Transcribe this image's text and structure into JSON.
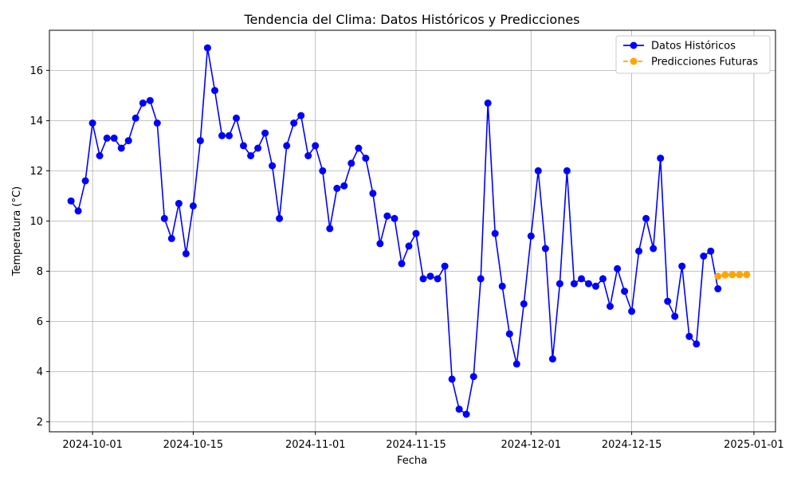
{
  "chart_data": {
    "type": "line",
    "title": "Tendencia del Clima: Datos Históricos y Predicciones",
    "xlabel": "Fecha",
    "ylabel": "Temperatura (°C)",
    "x_ticks": [
      "2024-10-01",
      "2024-10-15",
      "2024-11-01",
      "2024-11-15",
      "2024-12-01",
      "2024-12-15",
      "2025-01-01"
    ],
    "y_ticks": [
      2,
      4,
      6,
      8,
      10,
      12,
      14,
      16
    ],
    "xlim": [
      "2024-09-25",
      "2025-01-04"
    ],
    "ylim": [
      1.6,
      17.6
    ],
    "grid": true,
    "legend_position": "top-right",
    "series": [
      {
        "name": "Datos Históricos",
        "color": "#0000ff",
        "style": "solid",
        "start": "2024-09-28",
        "values": [
          10.8,
          10.4,
          11.6,
          13.9,
          12.6,
          13.3,
          13.3,
          12.9,
          13.2,
          14.1,
          14.7,
          14.8,
          13.9,
          10.1,
          9.3,
          10.7,
          8.7,
          10.6,
          13.2,
          16.9,
          15.2,
          13.4,
          13.4,
          14.1,
          13.0,
          12.6,
          12.9,
          13.5,
          12.2,
          10.1,
          13.0,
          13.9,
          14.2,
          12.6,
          13.0,
          12.0,
          9.7,
          11.3,
          11.4,
          12.3,
          12.9,
          12.5,
          11.1,
          9.1,
          10.2,
          10.1,
          8.3,
          9.0,
          9.5,
          7.7,
          7.8,
          7.7,
          8.2,
          3.7,
          2.5,
          2.3,
          3.8,
          7.7,
          14.7,
          9.5,
          7.4,
          5.5,
          4.3,
          6.7,
          9.4,
          12.0,
          8.9,
          4.5,
          7.5,
          12.0,
          7.5,
          7.7,
          7.5,
          7.4,
          7.7,
          6.6,
          8.1,
          7.2,
          6.4,
          8.8,
          10.1,
          8.9,
          12.5,
          6.8,
          6.2,
          8.2,
          5.4,
          5.1,
          8.6,
          8.8,
          7.3
        ]
      },
      {
        "name": "Predicciones Futuras",
        "color": "#ffa500",
        "style": "dashed",
        "start": "2024-12-27",
        "values": [
          7.8,
          7.85,
          7.86,
          7.86,
          7.86
        ]
      }
    ]
  }
}
